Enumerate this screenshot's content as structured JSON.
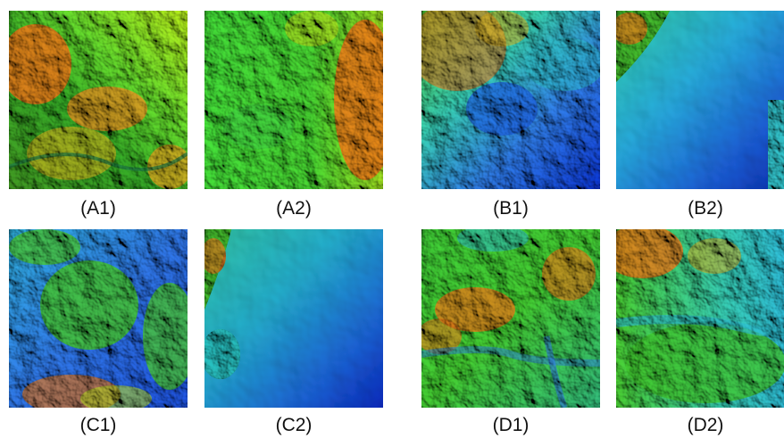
{
  "figure": {
    "panels": [
      {
        "id": "a1",
        "label": "(A1)"
      },
      {
        "id": "a2",
        "label": "(A2)"
      },
      {
        "id": "b1",
        "label": "(B1)"
      },
      {
        "id": "b2",
        "label": "(B2)"
      },
      {
        "id": "c1",
        "label": "(C1)"
      },
      {
        "id": "c2",
        "label": "(C2)"
      },
      {
        "id": "d1",
        "label": "(D1)"
      },
      {
        "id": "d2",
        "label": "(D2)"
      }
    ],
    "colors": {
      "low": "#0a2fc8",
      "mid_low": "#1fb8c8",
      "mid": "#3cc832",
      "mid_high": "#b4d214",
      "high": "#e66414",
      "peak": "#b41e0a"
    }
  }
}
